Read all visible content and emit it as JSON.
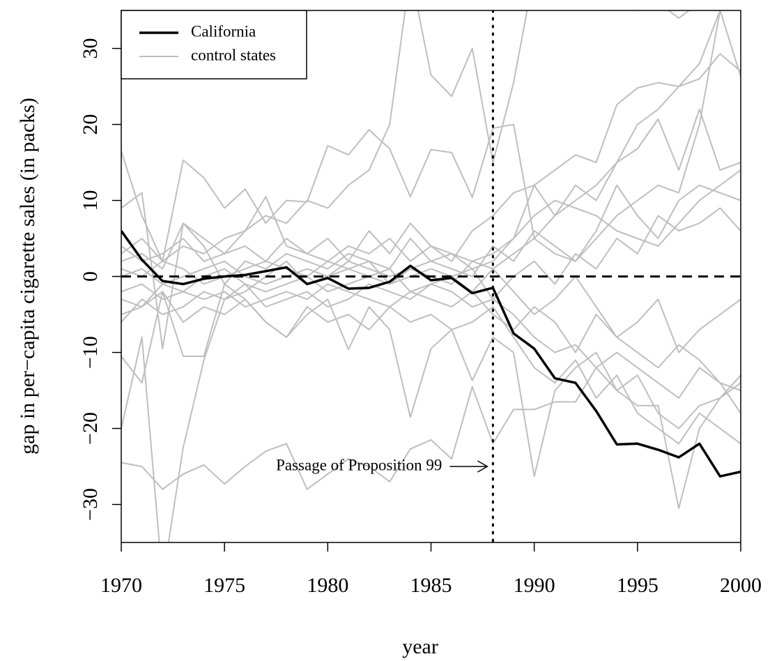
{
  "chart_data": {
    "type": "line",
    "xlabel": "year",
    "ylabel": "gap in per−capita cigarette sales (in packs)",
    "x": [
      1970,
      1971,
      1972,
      1973,
      1974,
      1975,
      1976,
      1977,
      1978,
      1979,
      1980,
      1981,
      1982,
      1983,
      1984,
      1985,
      1986,
      1987,
      1988,
      1989,
      1990,
      1991,
      1992,
      1993,
      1994,
      1995,
      1996,
      1997,
      1998,
      1999,
      2000
    ],
    "xlim": [
      1970,
      2000
    ],
    "xticks": [
      1970,
      1975,
      1980,
      1985,
      1990,
      1995,
      2000
    ],
    "ylim": [
      -35,
      35
    ],
    "yticks": [
      {
        "value": -30,
        "label": "−30"
      },
      {
        "value": -20,
        "label": "−20"
      },
      {
        "value": -10,
        "label": "−10"
      },
      0,
      10,
      20,
      30
    ],
    "hline": 0,
    "vline": 1988,
    "annotation": {
      "text": "Passage of Proposition 99",
      "x": 1988,
      "y": -25
    },
    "legend": "top-left",
    "series": [
      {
        "name": "California",
        "color": "#000000",
        "values": [
          6.0,
          2.2,
          -0.6,
          -1.0,
          -0.3,
          0.0,
          0.2,
          0.7,
          1.2,
          -1.0,
          -0.2,
          -1.6,
          -1.5,
          -0.7,
          1.4,
          -0.5,
          -0.2,
          -2.2,
          -1.5,
          -7.5,
          -9.5,
          -13.4,
          -14.0,
          -17.7,
          -22.1,
          -22.0,
          -22.8,
          -23.8,
          -22.0,
          -26.3,
          -25.7
        ]
      },
      {
        "name": "control states",
        "color": "#bebebe",
        "values": [
          [
            16.5,
            8,
            2,
            15.3,
            13,
            9,
            11.5,
            7,
            10,
            9.8,
            17.2,
            16,
            19.3,
            16.8,
            10.5,
            16.7,
            16.3,
            10.4,
            19.5,
            20,
            5,
            3,
            2,
            5,
            8,
            10,
            12,
            11,
            20,
            35,
            26.3
          ],
          [
            3,
            5,
            2,
            4,
            3,
            5,
            6,
            8,
            7,
            10,
            9,
            12,
            14,
            20,
            40,
            26.5,
            23.7,
            30,
            15,
            25.5,
            40,
            45,
            40,
            38,
            36,
            35,
            36,
            34,
            36,
            38,
            40
          ],
          [
            -20,
            -8,
            -40,
            -22.5,
            -11,
            -3,
            -2,
            0,
            2,
            -1,
            0,
            1,
            2,
            -1,
            0,
            1,
            0,
            -2,
            1,
            3,
            5,
            8,
            10,
            12,
            15,
            20,
            22,
            25,
            28,
            35,
            40
          ],
          [
            -24.5,
            -25,
            -28,
            -26,
            -24.8,
            -27.3,
            -25,
            -23,
            -22,
            -28,
            -26,
            -24,
            -25,
            -27,
            -22.7,
            -21.5,
            -24,
            -14.5,
            -22,
            -17.5,
            -17.5,
            -16.5,
            -16.5,
            -12,
            -10,
            -12,
            -14,
            -16,
            -12,
            -14,
            -15
          ],
          [
            -10.5,
            -14,
            -2,
            -10.5,
            -10.5,
            -1,
            -3,
            -6,
            -8,
            -5,
            -3,
            -9.6,
            -4,
            -7,
            -18.5,
            -9.5,
            -7,
            -13.7,
            -8,
            -10,
            -26.3,
            -15,
            -12,
            -10,
            -15,
            -17,
            -17,
            -30.5,
            -20,
            -16,
            -14
          ],
          [
            2,
            3,
            1,
            7,
            4,
            -1,
            2,
            1,
            3,
            2,
            1,
            3,
            2,
            1,
            5,
            2,
            3,
            1,
            2,
            5,
            12,
            8,
            12,
            10,
            15,
            16.8,
            20.7,
            14,
            22,
            14,
            15
          ],
          [
            -2,
            -1,
            -3,
            -2,
            0,
            1,
            -1,
            -2,
            -1,
            0,
            -2,
            -1,
            0,
            1,
            -2,
            -1,
            0,
            1,
            -3,
            -5,
            -8,
            -10,
            -9,
            -12,
            -15,
            -13,
            -18,
            -20,
            -17,
            -16,
            -13
          ],
          [
            1,
            0,
            2,
            1,
            -1,
            0,
            1,
            2,
            1,
            0,
            2,
            1,
            0,
            -1,
            1,
            0,
            -1,
            2,
            3,
            5,
            8,
            10,
            9,
            8,
            6,
            5,
            4,
            7,
            10,
            12,
            14
          ],
          [
            -3,
            -4,
            -1,
            -2,
            -3,
            -2,
            -4,
            -3,
            -2,
            -3,
            -1,
            -2,
            -3,
            -4,
            -2,
            -3,
            -4,
            -2,
            -5,
            -7,
            -4,
            -6,
            -10,
            -5,
            -8,
            -10,
            -12,
            -9,
            -11,
            -14,
            -18
          ],
          [
            0,
            1,
            -1,
            0,
            1,
            2,
            0,
            -1,
            0,
            1,
            0,
            2,
            1,
            0,
            1,
            2,
            1,
            0,
            4,
            2,
            6,
            4,
            2,
            6,
            12,
            8,
            5,
            10,
            12,
            11,
            10
          ],
          [
            4,
            2,
            3,
            5,
            2,
            3,
            4,
            2,
            5,
            3,
            2,
            4,
            3,
            5,
            2,
            4,
            3,
            2,
            1,
            -2,
            -5,
            -3,
            0,
            -4,
            -8,
            -6,
            -3,
            -10,
            -7,
            -5,
            -3
          ],
          [
            -6,
            -3,
            -5,
            -4,
            -2,
            -3,
            -1,
            -4,
            -3,
            -2,
            -4,
            -3,
            -1,
            -2,
            -3,
            -1,
            -2,
            -4,
            -3,
            0,
            2,
            -1,
            3,
            1,
            5,
            3,
            8,
            6,
            7,
            9,
            6
          ],
          [
            9,
            11,
            -9.5,
            7,
            5,
            3,
            6,
            10.5,
            4,
            3,
            5,
            2,
            6,
            3,
            7,
            4,
            2,
            6,
            8,
            11,
            12,
            14,
            16,
            15,
            22.6,
            24.8,
            25.5,
            25,
            26,
            29.3,
            27
          ],
          [
            -5,
            -4,
            -2,
            -6,
            -4,
            -5,
            -3,
            -6,
            -8,
            -4,
            -6,
            -5,
            -7,
            -4,
            -6,
            -5,
            -7,
            -6,
            -4,
            -8,
            -12,
            -14,
            -11,
            -16,
            -13,
            -18,
            -20,
            -22,
            -18,
            -20,
            -22
          ]
        ]
      }
    ]
  }
}
